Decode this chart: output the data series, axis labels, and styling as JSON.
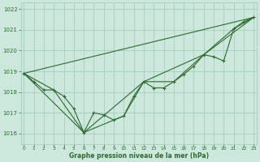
{
  "background_color": "#cce8dc",
  "grid_color": "#a0c8b8",
  "line_color": "#2d6a2d",
  "tick_color": "#2d6a2d",
  "xlabel": "Graphe pression niveau de la mer (hPa)",
  "xlim": [
    -0.3,
    23.3
  ],
  "ylim": [
    1015.5,
    1022.3
  ],
  "yticks": [
    1016,
    1017,
    1018,
    1019,
    1020,
    1021,
    1022
  ],
  "xticks": [
    0,
    1,
    2,
    3,
    4,
    5,
    6,
    7,
    8,
    9,
    10,
    11,
    12,
    13,
    14,
    15,
    16,
    17,
    18,
    19,
    20,
    21,
    22,
    23
  ],
  "series": [
    {
      "x": [
        0,
        1,
        2,
        3,
        4,
        5,
        6,
        7,
        8,
        9,
        10,
        11,
        12,
        13,
        14,
        15,
        16,
        17,
        18,
        19,
        20,
        21,
        22,
        23
      ],
      "y": [
        1018.9,
        1018.5,
        1018.1,
        1018.1,
        1017.8,
        1017.2,
        1016.05,
        1017.0,
        1016.9,
        1016.65,
        1016.85,
        1017.8,
        1018.5,
        1018.2,
        1018.2,
        1018.5,
        1018.85,
        1019.25,
        1019.8,
        1019.7,
        1019.5,
        1021.05,
        1021.4,
        1021.6
      ],
      "has_markers": true
    },
    {
      "x": [
        0,
        3,
        6,
        10,
        12,
        15,
        18,
        21,
        23
      ],
      "y": [
        1018.9,
        1018.1,
        1016.05,
        1016.85,
        1018.5,
        1018.5,
        1019.8,
        1021.05,
        1021.6
      ],
      "has_markers": false
    },
    {
      "x": [
        0,
        23
      ],
      "y": [
        1018.9,
        1021.6
      ],
      "has_markers": false
    },
    {
      "x": [
        0,
        6,
        12,
        18,
        23
      ],
      "y": [
        1018.9,
        1016.05,
        1018.5,
        1019.8,
        1021.6
      ],
      "has_markers": false
    }
  ]
}
